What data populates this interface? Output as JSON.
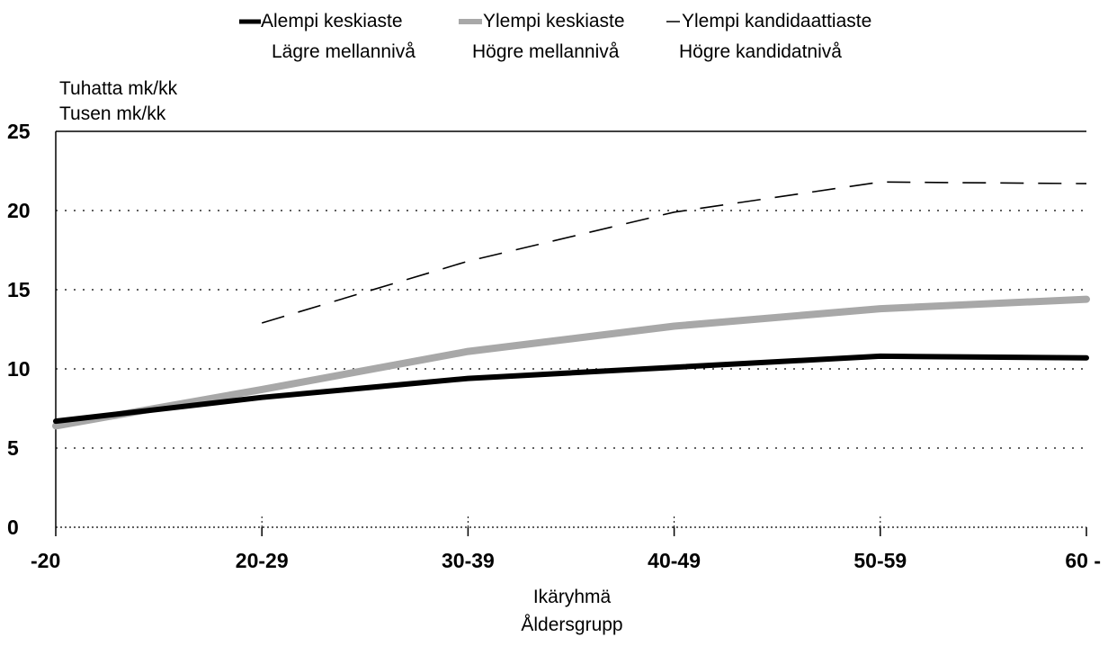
{
  "chart_data": {
    "type": "line",
    "title": "",
    "categories": [
      "-20",
      "20-29",
      "30-39",
      "40-49",
      "50-59",
      "60 -"
    ],
    "series": [
      {
        "name": "Alempi keskiaste",
        "name_sv": "Lägre mellannivå",
        "values": [
          6.7,
          8.2,
          9.4,
          10.1,
          10.8,
          10.7
        ],
        "color": "#000000",
        "style": "solid-thick"
      },
      {
        "name": "Ylempi keskiaste",
        "name_sv": "Högre mellannivå",
        "values": [
          6.4,
          8.7,
          11.1,
          12.7,
          13.8,
          14.4
        ],
        "color": "#a8a8a8",
        "style": "solid-gray"
      },
      {
        "name": "Ylempi kandidaattiaste",
        "name_sv": "Högre kandidatnivå",
        "values": [
          null,
          12.9,
          16.8,
          19.9,
          21.8,
          21.7
        ],
        "color": "#000000",
        "style": "dashed"
      }
    ],
    "ylabel": [
      "Tuhatta mk/kk",
      "Tusen mk/kk"
    ],
    "xlabel": [
      "Ikäryhmä",
      "Åldersgrupp"
    ],
    "ylim": [
      0,
      25
    ],
    "yticks": [
      "0",
      "5",
      "10",
      "15",
      "20",
      "25"
    ],
    "grid": "dotted horizontal",
    "legend_position": "top"
  }
}
